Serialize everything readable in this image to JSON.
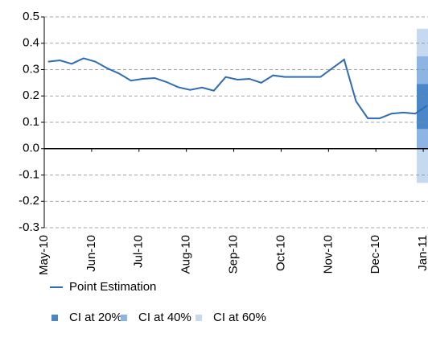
{
  "chart_data": {
    "type": "line",
    "x": [
      0.08,
      0.33,
      0.58,
      0.83,
      1.08,
      1.33,
      1.58,
      1.83,
      2.08,
      2.33,
      2.58,
      2.83,
      3.08,
      3.33,
      3.58,
      3.83,
      4.08,
      4.33,
      4.58,
      4.83,
      5.08,
      5.33,
      5.58,
      5.83,
      6.08,
      6.33,
      6.58,
      6.83,
      7.08,
      7.33,
      7.58,
      7.83,
      8.08
    ],
    "series": [
      {
        "name": "Point Estimation",
        "color": "#2e6db4",
        "values": [
          0.33,
          0.335,
          0.322,
          0.343,
          0.33,
          0.305,
          0.285,
          0.258,
          0.265,
          0.268,
          0.253,
          0.233,
          0.223,
          0.232,
          0.22,
          0.272,
          0.262,
          0.265,
          0.25,
          0.278,
          0.272,
          0.272,
          0.272,
          0.272,
          0.305,
          0.338,
          0.18,
          0.115,
          0.115,
          0.133,
          0.137,
          0.133,
          0.163
        ]
      }
    ],
    "intervals": [
      {
        "name": "CI at 20%",
        "color": "#4a86c8",
        "low": 0.075,
        "high": 0.245
      },
      {
        "name": "CI at 40%",
        "color": "#8db4e2",
        "low": 0.0,
        "high": 0.35
      },
      {
        "name": "CI at 60%",
        "color": "#c5d9f1",
        "low": -0.13,
        "high": 0.455
      }
    ],
    "xlim": [
      0,
      8.1
    ],
    "xticks": [
      {
        "value": 0,
        "label": "May-10"
      },
      {
        "value": 1,
        "label": "Jun-10"
      },
      {
        "value": 2,
        "label": "Jul-10"
      },
      {
        "value": 3,
        "label": "Aug-10"
      },
      {
        "value": 4,
        "label": "Sep-10"
      },
      {
        "value": 5,
        "label": "Oct-10"
      },
      {
        "value": 6,
        "label": "Nov-10"
      },
      {
        "value": 7,
        "label": "Dec-10"
      },
      {
        "value": 8,
        "label": "Jan-11"
      }
    ],
    "ylim": [
      -0.3,
      0.5
    ],
    "yticks": [
      {
        "value": 0.5,
        "label": "0.5"
      },
      {
        "value": 0.4,
        "label": "0.4"
      },
      {
        "value": 0.3,
        "label": "0.3"
      },
      {
        "value": 0.2,
        "label": "0.2"
      },
      {
        "value": 0.1,
        "label": "0.1"
      },
      {
        "value": 0,
        "label": "0.0"
      },
      {
        "value": -0.1,
        "label": "-0.1"
      },
      {
        "value": -0.2,
        "label": "-0.2"
      },
      {
        "value": -0.3,
        "label": "-0.3"
      }
    ],
    "grid": true
  }
}
